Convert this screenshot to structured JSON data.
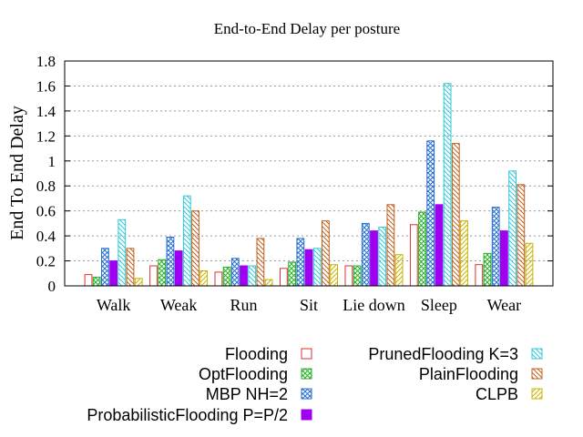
{
  "chart_data": {
    "type": "bar",
    "title": "End-to-End Delay per posture",
    "xlabel": "",
    "ylabel": "End To End Delay",
    "ylim": [
      0,
      1.8
    ],
    "yticks": [
      "0",
      "0.2",
      "0.4",
      "0.6",
      "0.8",
      "1",
      "1.2",
      "1.4",
      "1.6",
      "1.8"
    ],
    "grid": true,
    "legend_position": "bottom",
    "categories": [
      "Walk",
      "Weak",
      "Run",
      "Sit",
      "Lie down",
      "Sleep",
      "Wear"
    ],
    "series": [
      {
        "name": "Flooding",
        "color": "#e03030",
        "pattern": "hollow",
        "values": [
          0.09,
          0.16,
          0.11,
          0.14,
          0.16,
          0.49,
          0.17
        ]
      },
      {
        "name": "OptFlooding",
        "color": "#28b028",
        "pattern": "cross",
        "values": [
          0.07,
          0.21,
          0.15,
          0.19,
          0.16,
          0.59,
          0.26
        ]
      },
      {
        "name": "MBP NH=2",
        "color": "#2870d0",
        "pattern": "cross",
        "values": [
          0.3,
          0.39,
          0.22,
          0.38,
          0.5,
          1.16,
          0.63
        ]
      },
      {
        "name": "ProbabilisticFlooding P=P/2",
        "color": "#a000f0",
        "pattern": "solid",
        "values": [
          0.2,
          0.28,
          0.16,
          0.29,
          0.44,
          0.65,
          0.44
        ]
      },
      {
        "name": "PrunedFlooding K=3",
        "color": "#30c8d8",
        "pattern": "hatch-back",
        "values": [
          0.53,
          0.72,
          0.16,
          0.3,
          0.47,
          1.62,
          0.92
        ]
      },
      {
        "name": "PlainFlooding",
        "color": "#c06020",
        "pattern": "hatch-back",
        "values": [
          0.3,
          0.6,
          0.38,
          0.52,
          0.65,
          1.14,
          0.81
        ]
      },
      {
        "name": "CLPB",
        "color": "#c8b400",
        "pattern": "hatch-fwd",
        "values": [
          0.06,
          0.12,
          0.05,
          0.17,
          0.25,
          0.52,
          0.34
        ]
      }
    ]
  }
}
